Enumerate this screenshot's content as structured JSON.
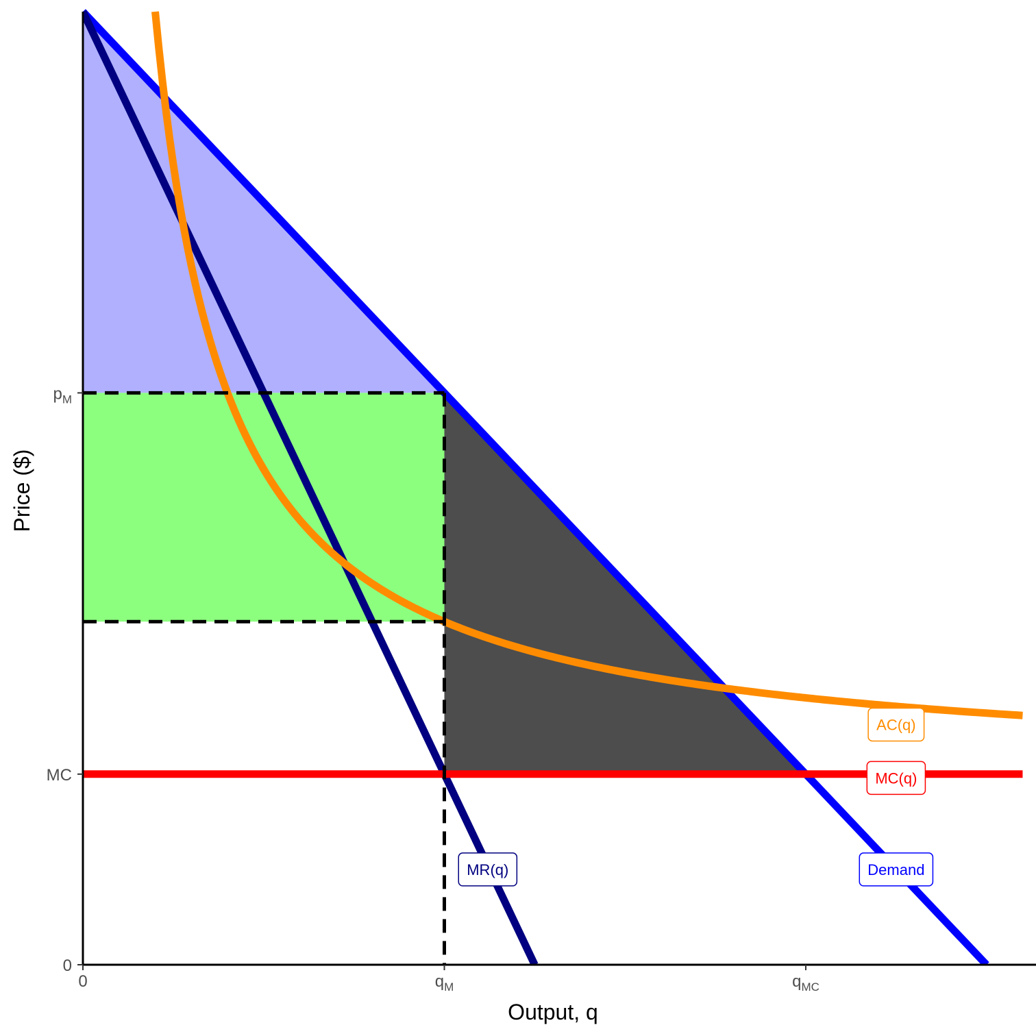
{
  "chart_data": {
    "type": "line",
    "title": "",
    "xlabel": "Output, q",
    "ylabel": "Price ($)",
    "xlim": [
      0,
      13
    ],
    "ylim": [
      0,
      25
    ],
    "grid": false,
    "legend": "none",
    "x_ticks": [
      {
        "value": 0,
        "label": "0",
        "sub": ""
      },
      {
        "value": 5,
        "label": "q",
        "sub": "M"
      },
      {
        "value": 10,
        "label": "q",
        "sub": "MC"
      }
    ],
    "y_ticks": [
      {
        "value": 0,
        "label": "0",
        "sub": ""
      },
      {
        "value": 5,
        "label": "MC",
        "sub": ""
      },
      {
        "value": 15,
        "label": "p",
        "sub": "M"
      }
    ],
    "series": [
      {
        "name": "Demand",
        "kind": "line",
        "color": "#0000ff",
        "x": [
          0,
          12.5
        ],
        "y": [
          25,
          0
        ]
      },
      {
        "name": "MR(q)",
        "kind": "line",
        "color": "#000080",
        "x": [
          0,
          6.25
        ],
        "y": [
          25,
          0
        ]
      },
      {
        "name": "MC(q)",
        "kind": "line",
        "color": "#ff0000",
        "x": [
          0,
          13
        ],
        "y": [
          5,
          5
        ]
      },
      {
        "name": "AC(q)",
        "kind": "curve",
        "color": "#ff8c00",
        "formula": "5 + 20/q",
        "x_range": [
          1,
          13
        ]
      }
    ],
    "areas": [
      {
        "label": "",
        "color": "#b0b0ff",
        "points": [
          [
            0,
            25
          ],
          [
            5,
            15
          ],
          [
            0,
            15
          ]
        ]
      },
      {
        "label": "",
        "color": "#8cff7f",
        "points": [
          [
            0,
            15
          ],
          [
            5,
            15
          ],
          [
            5,
            9
          ],
          [
            0,
            9
          ]
        ]
      },
      {
        "label": "",
        "color": "#4d4d4d",
        "points": [
          [
            5,
            15
          ],
          [
            10,
            5
          ],
          [
            5,
            5
          ]
        ]
      }
    ],
    "reference_lines": [
      {
        "points": [
          [
            0,
            15
          ],
          [
            5,
            15
          ]
        ]
      },
      {
        "points": [
          [
            0,
            9
          ],
          [
            5,
            9
          ]
        ]
      },
      {
        "points": [
          [
            5,
            15
          ],
          [
            5,
            0
          ]
        ]
      }
    ],
    "annotations": [
      {
        "text": "AC(q)",
        "x": 11.25,
        "y": 6.3,
        "color": "#ff8c00"
      },
      {
        "text": "MC(q)",
        "x": 11.25,
        "y": 4.9,
        "color": "#ff0000"
      },
      {
        "text": "MR(q)",
        "x": 5.6,
        "y": 2.5,
        "color": "#000080"
      },
      {
        "text": "Demand",
        "x": 11.25,
        "y": 2.5,
        "color": "#0000ff"
      }
    ]
  }
}
